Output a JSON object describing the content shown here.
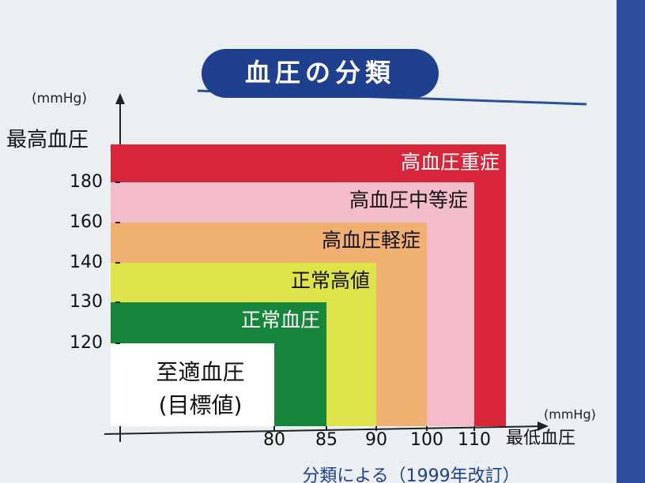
{
  "chart_data": {
    "type": "nested-region",
    "title": "血圧の分類",
    "y_unit": "(mmHg)",
    "y_label": "最高血圧",
    "x_unit": "(mmHg)",
    "x_label": "最低血圧",
    "xticks": [
      80,
      85,
      90,
      100,
      110
    ],
    "yticks": [
      120,
      130,
      140,
      160,
      180
    ],
    "series": [
      {
        "name": "至適血圧",
        "sublabel": "(目標値)",
        "color": "#ffffff",
        "text_color": "#111111"
      },
      {
        "name": "正常血圧",
        "color": "#16873a",
        "text_color": "#ffffff"
      },
      {
        "name": "正常高値",
        "color": "#dde348",
        "text_color": "#111111"
      },
      {
        "name": "高血圧軽症",
        "color": "#efb072",
        "text_color": "#111111"
      },
      {
        "name": "高血圧中等症",
        "color": "#f2bccb",
        "text_color": "#111111"
      },
      {
        "name": "高血圧重症",
        "color": "#d7263a",
        "text_color": "#ffffff"
      }
    ],
    "footer": "分類による（1999年改訂）"
  }
}
